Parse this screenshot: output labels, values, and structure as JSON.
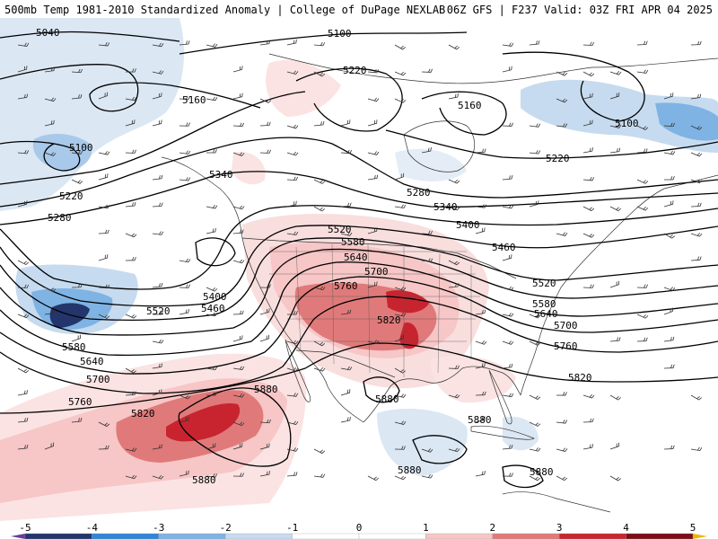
{
  "header": {
    "left": "500mb Temp 1981-2010 Standardized Anomaly | College of DuPage NEXLAB",
    "right": "06Z GFS | F237 Valid: 03Z FRI APR 04 2025"
  },
  "colorbar": {
    "ticks": [
      "-5",
      "-4",
      "-3",
      "-2",
      "-1",
      "0",
      "1",
      "2",
      "3",
      "4",
      "5"
    ],
    "colors": [
      "#6a3d9a",
      "#23356b",
      "#2f86d6",
      "#7fb3e3",
      "#c6dbef",
      "#ffffff",
      "#ffffff",
      "#f7c6c6",
      "#e07a7a",
      "#c8242f",
      "#7b0d18",
      "#f0b400"
    ]
  },
  "contour_labels": [
    "5040",
    "5100",
    "5160",
    "5220",
    "5280",
    "5340",
    "5400",
    "5460",
    "5520",
    "5580",
    "5640",
    "5700",
    "5760",
    "5820",
    "5880"
  ],
  "map_labels": [
    {
      "text": "5040"
    },
    {
      "text": "5100"
    },
    {
      "text": "5220"
    },
    {
      "text": "5160"
    },
    {
      "text": "5160"
    },
    {
      "text": "5100"
    },
    {
      "text": "5100"
    },
    {
      "text": "5220"
    },
    {
      "text": "5220"
    },
    {
      "text": "5340"
    },
    {
      "text": "5280"
    },
    {
      "text": "5280"
    },
    {
      "text": "5340"
    },
    {
      "text": "5400"
    },
    {
      "text": "5460"
    },
    {
      "text": "5520"
    },
    {
      "text": "5580"
    },
    {
      "text": "5640"
    },
    {
      "text": "5700"
    },
    {
      "text": "5760"
    },
    {
      "text": "5820"
    },
    {
      "text": "5520"
    },
    {
      "text": "5580"
    },
    {
      "text": "5640"
    },
    {
      "text": "5700"
    },
    {
      "text": "5760"
    },
    {
      "text": "5820"
    },
    {
      "text": "5400"
    },
    {
      "text": "5460"
    },
    {
      "text": "5520"
    },
    {
      "text": "5580"
    },
    {
      "text": "5640"
    },
    {
      "text": "5700"
    },
    {
      "text": "5760"
    },
    {
      "text": "5820"
    },
    {
      "text": "5880"
    },
    {
      "text": "5880"
    },
    {
      "text": "5880"
    },
    {
      "text": "5880"
    },
    {
      "text": "5880"
    }
  ]
}
